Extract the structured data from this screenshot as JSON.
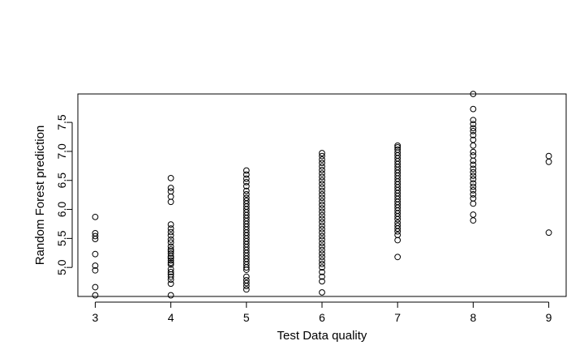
{
  "chart_data": {
    "type": "scatter",
    "title": "",
    "xlabel": "Test Data quality",
    "ylabel": "Random Forest prediction",
    "xlim": [
      2.77,
      9.23
    ],
    "ylim": [
      4.5,
      7.99
    ],
    "x_ticks": [
      3,
      4,
      5,
      6,
      7,
      8,
      9
    ],
    "y_ticks": [
      5.0,
      5.5,
      6.0,
      6.5,
      7.0,
      7.5
    ],
    "y_tick_labels": [
      "5.0",
      "5.5",
      "6.0",
      "6.5",
      "7.0",
      "7.5"
    ],
    "grid": false,
    "legend": "none",
    "points": [
      {
        "x": 3,
        "y": [
          4.52,
          4.66,
          4.95,
          5.03,
          5.23,
          5.49,
          5.54,
          5.59,
          5.87
        ]
      },
      {
        "x": 4,
        "y": [
          4.52,
          4.72,
          4.79,
          4.84,
          4.88,
          4.92,
          4.97,
          5.05,
          5.08,
          5.12,
          5.16,
          5.19,
          5.24,
          5.28,
          5.31,
          5.36,
          5.43,
          5.48,
          5.55,
          5.61,
          5.67,
          5.74,
          6.13,
          6.22,
          6.31,
          6.37,
          6.54
        ]
      },
      {
        "x": 5,
        "y": [
          4.62,
          4.68,
          4.73,
          4.78,
          4.84,
          4.96,
          5.0,
          5.05,
          5.1,
          5.15,
          5.2,
          5.25,
          5.3,
          5.35,
          5.4,
          5.45,
          5.5,
          5.55,
          5.6,
          5.65,
          5.7,
          5.75,
          5.8,
          5.85,
          5.9,
          5.95,
          6.0,
          6.05,
          6.1,
          6.15,
          6.2,
          6.26,
          6.32,
          6.4,
          6.47,
          6.53,
          6.6,
          6.67
        ]
      },
      {
        "x": 6,
        "y": [
          4.57,
          4.76,
          4.84,
          4.92,
          5.0,
          5.06,
          5.12,
          5.18,
          5.24,
          5.3,
          5.36,
          5.42,
          5.48,
          5.54,
          5.6,
          5.66,
          5.72,
          5.78,
          5.84,
          5.9,
          5.96,
          6.02,
          6.08,
          6.14,
          6.2,
          6.26,
          6.32,
          6.38,
          6.44,
          6.5,
          6.56,
          6.62,
          6.68,
          6.74,
          6.8,
          6.86,
          6.92,
          6.97
        ]
      },
      {
        "x": 7,
        "y": [
          5.18,
          5.47,
          5.56,
          5.62,
          5.67,
          5.72,
          5.77,
          5.83,
          5.88,
          5.93,
          5.98,
          6.03,
          6.08,
          6.13,
          6.18,
          6.23,
          6.28,
          6.33,
          6.38,
          6.43,
          6.48,
          6.53,
          6.58,
          6.63,
          6.68,
          6.73,
          6.78,
          6.83,
          6.88,
          6.93,
          6.98,
          7.03,
          7.07,
          7.1
        ]
      },
      {
        "x": 8,
        "y": [
          5.81,
          5.91,
          6.1,
          6.19,
          6.26,
          6.33,
          6.39,
          6.45,
          6.52,
          6.58,
          6.64,
          6.7,
          6.77,
          6.84,
          6.93,
          6.99,
          7.1,
          7.2,
          7.28,
          7.35,
          7.4,
          7.47,
          7.54,
          7.73,
          7.99
        ]
      },
      {
        "x": 9,
        "y": [
          5.6,
          6.82,
          6.92
        ]
      }
    ]
  }
}
